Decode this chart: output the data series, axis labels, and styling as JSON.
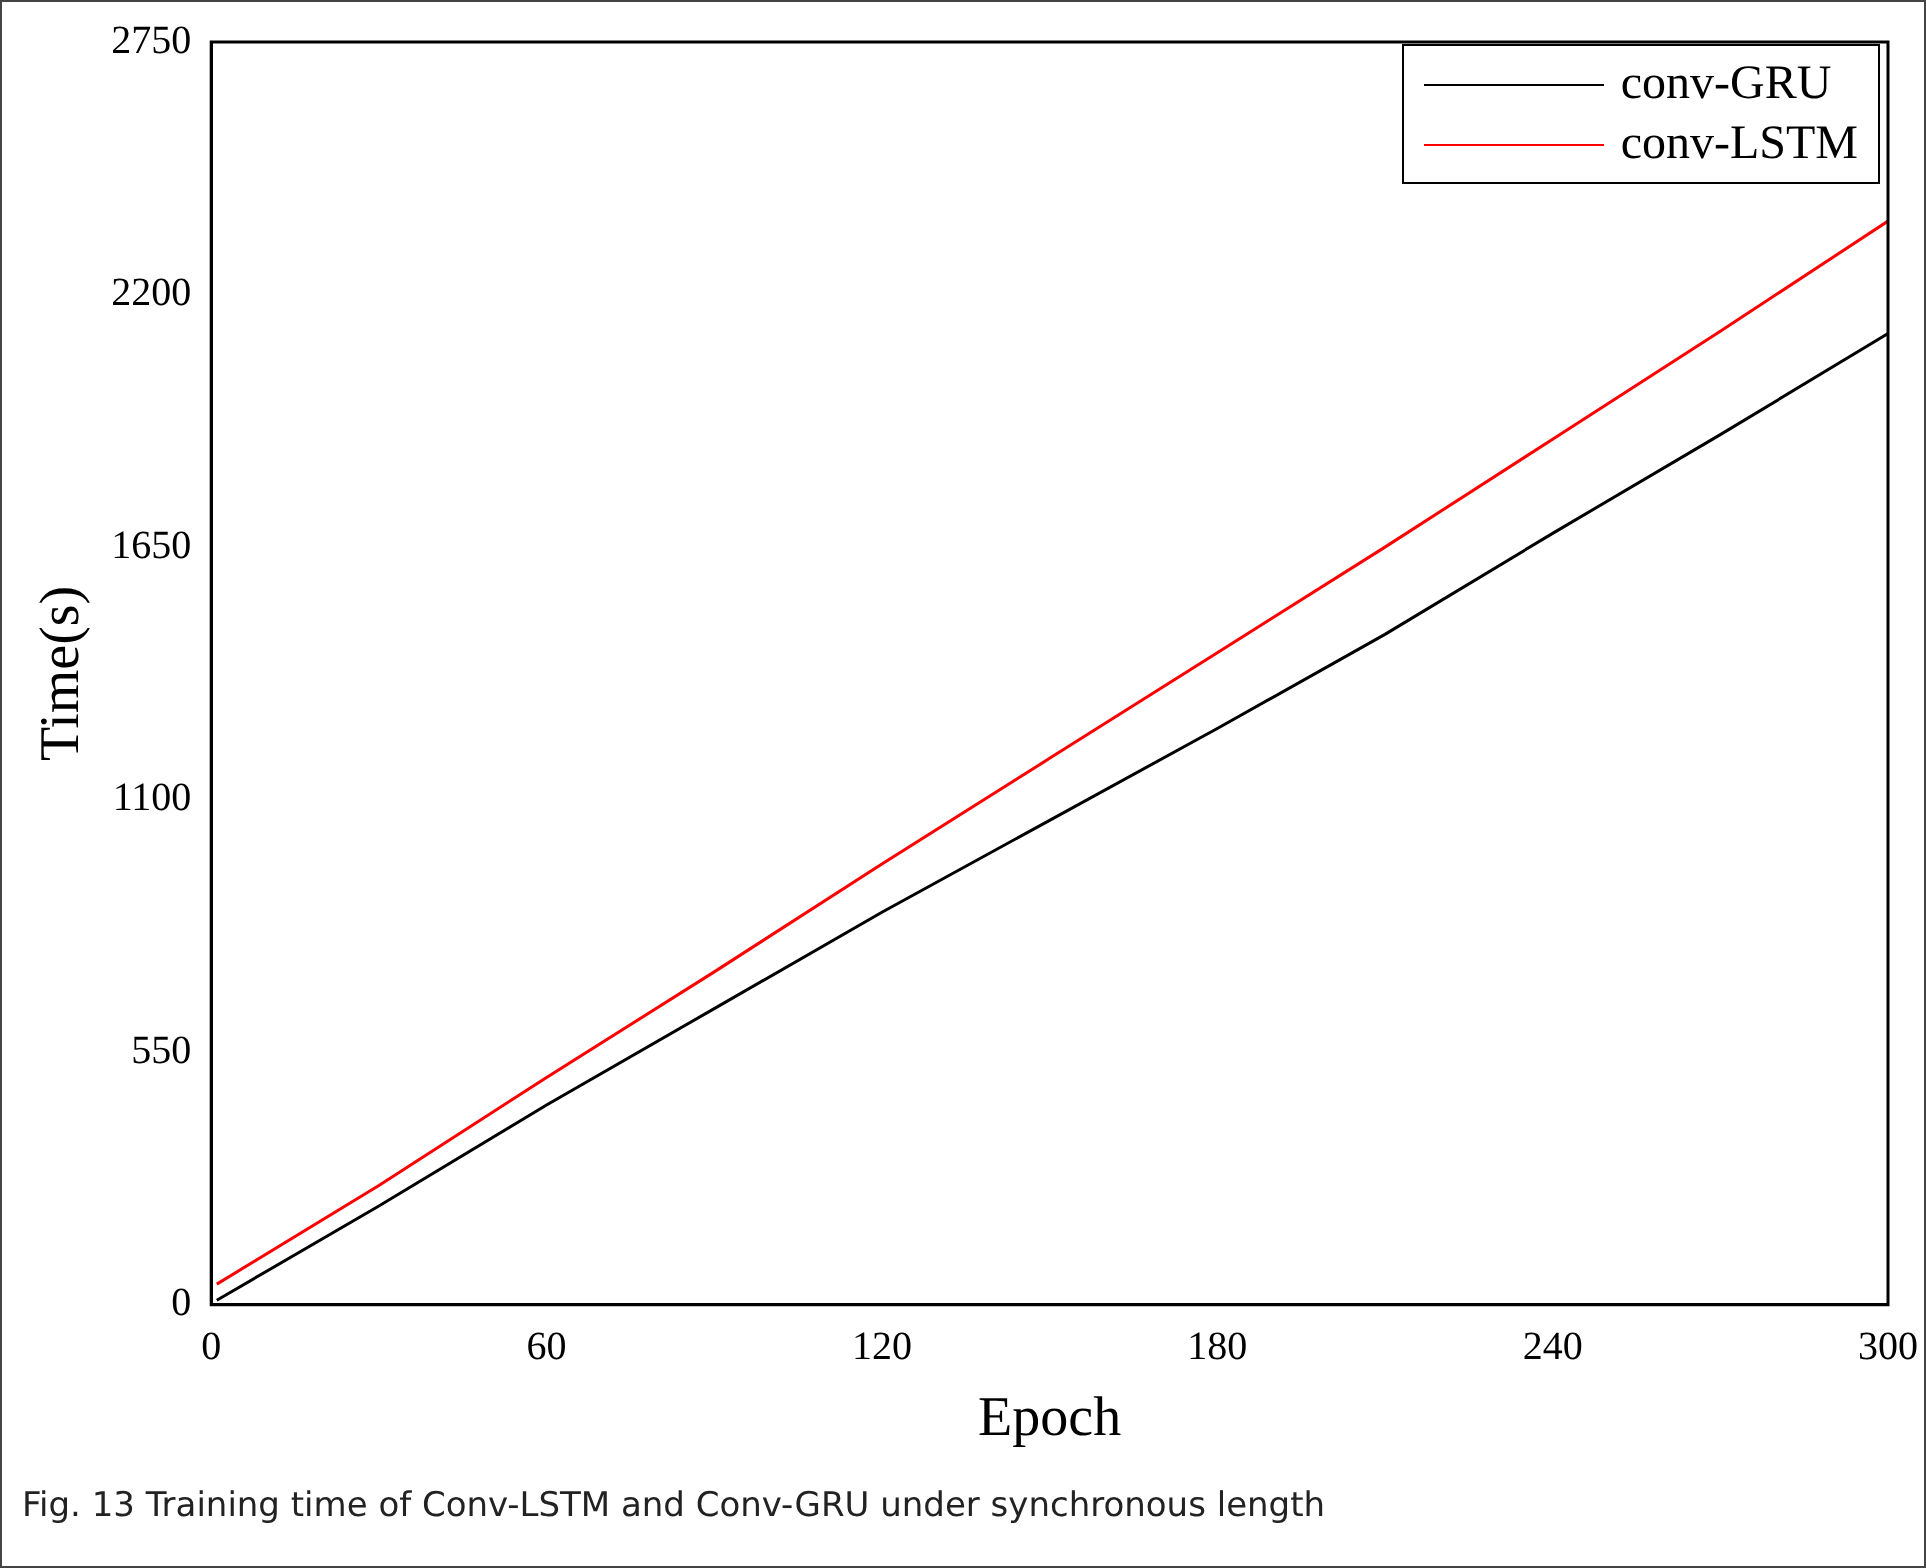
{
  "chart_data": {
    "type": "line",
    "xlabel": "Epoch",
    "ylabel": "Time(s)",
    "x": [
      1,
      30,
      60,
      90,
      120,
      150,
      180,
      210,
      240,
      270,
      300
    ],
    "series": [
      {
        "name": "conv-GRU",
        "color": "#000000",
        "values": [
          10,
          215,
          435,
          645,
          855,
          1055,
          1255,
          1460,
          1680,
          1895,
          2115
        ]
      },
      {
        "name": "conv-LSTM",
        "color": "#ff0000",
        "values": [
          45,
          260,
          495,
          725,
          960,
          1190,
          1420,
          1650,
          1885,
          2120,
          2360
        ]
      }
    ],
    "xlim": [
      0,
      300
    ],
    "xticks": [
      0,
      60,
      120,
      180,
      240,
      300
    ],
    "ylim": [
      0,
      2750
    ],
    "yticks": [
      0,
      550,
      1100,
      1650,
      2200,
      2750
    ],
    "grid": false,
    "legend": "top right",
    "marker": "none",
    "line_style": "solid",
    "annotations": [
      "Fig. 13 Training time of Conv-LSTM and Conv-GRU under synchronous length"
    ]
  }
}
